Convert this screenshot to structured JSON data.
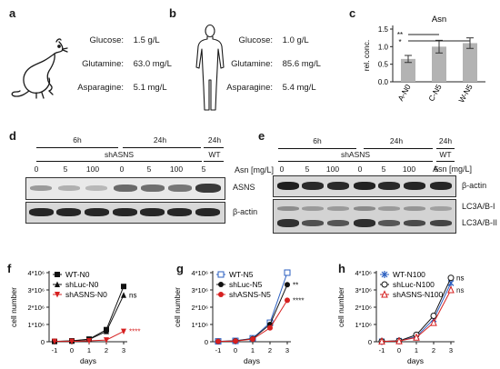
{
  "panels": {
    "a": "a",
    "b": "b",
    "c": "c",
    "d": "d",
    "e": "e",
    "f": "f",
    "g": "g",
    "h": "h"
  },
  "panel_a": {
    "rows": [
      {
        "label": "Glucose:",
        "value": "1.5 g/L"
      },
      {
        "label": "Glutamine:",
        "value": "63.0 mg/L"
      },
      {
        "label": "Asparagine:",
        "value": "5.1 mg/L"
      }
    ],
    "icon": "rat-icon"
  },
  "panel_b": {
    "rows": [
      {
        "label": "Glucose:",
        "value": "1.0 g/L"
      },
      {
        "label": "Glutamine:",
        "value": "85.6 mg/L"
      },
      {
        "label": "Asparagine:",
        "value": "5.4 mg/L"
      }
    ],
    "icon": "human-figure-icon"
  },
  "panel_d": {
    "time_6": "6h",
    "time_24": "24h",
    "time_24b": "24h",
    "group": "shASNS",
    "wt": "WT",
    "lanes": [
      "0",
      "5",
      "100",
      "0",
      "5",
      "100",
      "5"
    ],
    "unit": "Asn [mg/L]",
    "blots": [
      "ASNS",
      "β-actin"
    ]
  },
  "panel_e": {
    "time_6": "6h",
    "time_24": "24h",
    "time_24b": "24h",
    "group": "shASNS",
    "wt": "WT",
    "lanes": [
      "0",
      "5",
      "100",
      "0",
      "5",
      "100",
      "5"
    ],
    "unit": "Asn [mg/L]",
    "blots": [
      "β-actin",
      "LC3A/B-I",
      "LC3A/B-II"
    ]
  },
  "chart_data": [
    {
      "panel": "c",
      "type": "bar",
      "title": "Asn",
      "ylabel": "rel. conc.",
      "categories": [
        "A-N0",
        "C-N5",
        "W-N5"
      ],
      "values": [
        0.65,
        1.0,
        1.1
      ],
      "errors": [
        0.1,
        0.18,
        0.15
      ],
      "ylim": [
        0,
        1.5
      ],
      "yticks": [
        "0.0",
        "0.5",
        "1.0",
        "1.5"
      ],
      "significance": [
        "**",
        "*"
      ],
      "color": "#b3b3b3"
    },
    {
      "panel": "f",
      "type": "line",
      "xlabel": "days",
      "ylabel": "cell number",
      "x": [
        -1,
        0,
        1,
        2,
        3
      ],
      "yticks": [
        "0",
        "1*10⁶",
        "2*10⁶",
        "3*10⁶",
        "4*10⁶"
      ],
      "ylim": [
        0,
        4000000
      ],
      "series": [
        {
          "name": "WT-N0",
          "values": [
            20000,
            50000,
            150000,
            700000,
            3200000
          ],
          "color": "#111111",
          "marker": "square"
        },
        {
          "name": "shLuc-N0",
          "values": [
            20000,
            40000,
            130000,
            600000,
            2700000
          ],
          "color": "#111111",
          "marker": "triangle"
        },
        {
          "name": "shASNS-N0",
          "values": [
            20000,
            20000,
            50000,
            100000,
            600000
          ],
          "color": "#d62020",
          "marker": "triangle-down"
        }
      ],
      "annotations": [
        "ns",
        "****"
      ]
    },
    {
      "panel": "g",
      "type": "line",
      "xlabel": "days",
      "ylabel": "cell number",
      "x": [
        -1,
        0,
        1,
        2,
        3
      ],
      "yticks": [
        "0",
        "1*10⁶",
        "2*10⁶",
        "3*10⁶",
        "4*10⁶"
      ],
      "ylim": [
        0,
        4000000
      ],
      "series": [
        {
          "name": "WT-N5",
          "values": [
            20000,
            50000,
            200000,
            1100000,
            4000000
          ],
          "color": "#2b5fc0",
          "marker": "square-open"
        },
        {
          "name": "shLuc-N5",
          "values": [
            20000,
            50000,
            180000,
            1000000,
            3300000
          ],
          "color": "#111111",
          "marker": "circle"
        },
        {
          "name": "shASNS-N5",
          "values": [
            20000,
            40000,
            150000,
            800000,
            2400000
          ],
          "color": "#d62020",
          "marker": "circle"
        }
      ],
      "annotations": [
        "**",
        "****"
      ]
    },
    {
      "panel": "h",
      "type": "line",
      "xlabel": "days",
      "ylabel": "cell number",
      "x": [
        -1,
        0,
        1,
        2,
        3
      ],
      "yticks": [
        "0",
        "1*10⁶",
        "2*10⁶",
        "3*10⁶",
        "4*10⁶"
      ],
      "ylim": [
        0,
        4000000
      ],
      "series": [
        {
          "name": "WT-N100",
          "values": [
            20000,
            50000,
            300000,
            1300000,
            3400000
          ],
          "color": "#2b5fc0",
          "marker": "star"
        },
        {
          "name": "shLuc-N100",
          "values": [
            20000,
            50000,
            400000,
            1500000,
            3700000
          ],
          "color": "#111111",
          "marker": "circle-open"
        },
        {
          "name": "shASNS-N100",
          "values": [
            20000,
            40000,
            250000,
            1100000,
            3000000
          ],
          "color": "#d62020",
          "marker": "triangle-open"
        }
      ],
      "annotations": [
        "ns",
        "ns"
      ]
    }
  ]
}
